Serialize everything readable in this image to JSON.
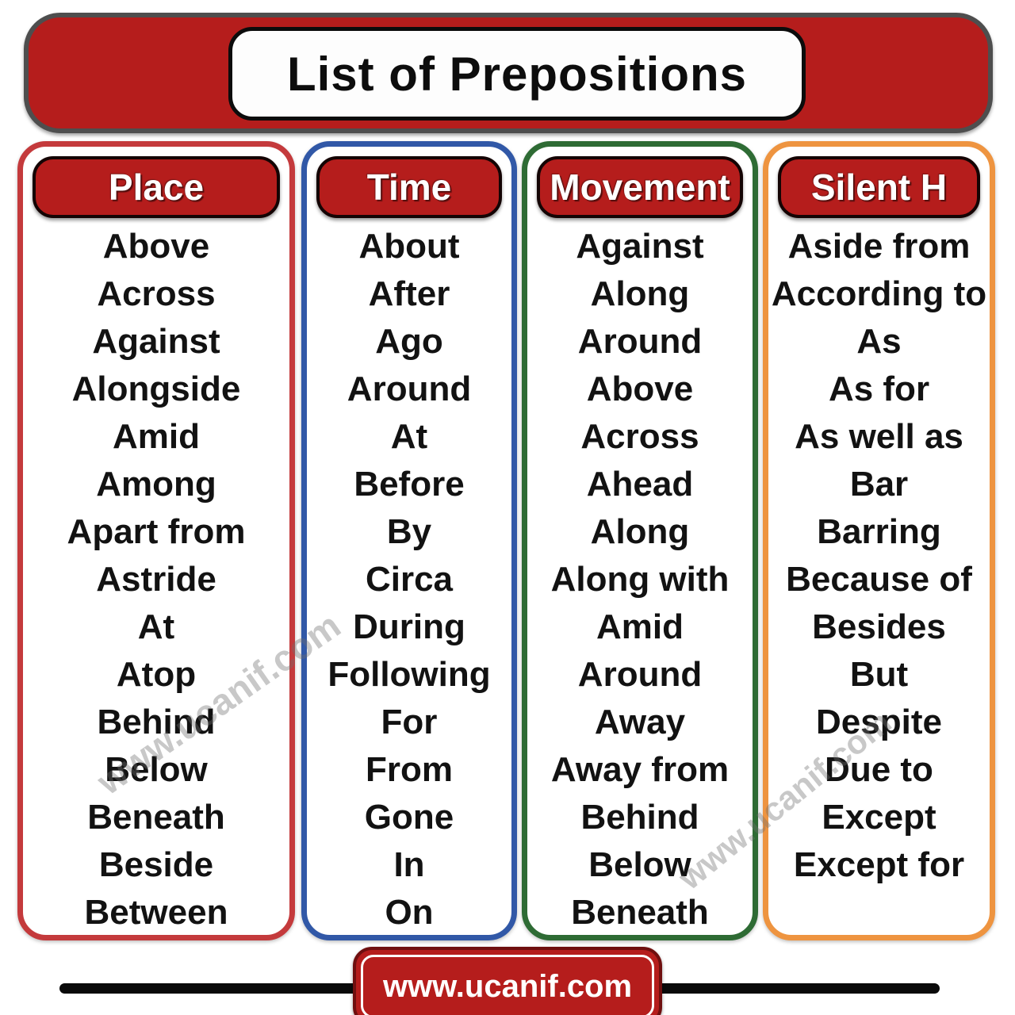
{
  "title": "List of Prepositions",
  "watermark_text": "www.ucanif.com",
  "footer": {
    "site": "www.ucanif.com"
  },
  "colors": {
    "banner_red": "#b51d1c",
    "header_pill_red": "#b51d1c",
    "place_border": "#c43a3c",
    "time_border": "#3158a7",
    "movement_border": "#2e6b34",
    "silent_h_border": "#ee9440",
    "footer_badge_red": "#b51d1c"
  },
  "columns": [
    {
      "label": "Place",
      "border_color": "#c43a3c",
      "items": [
        "Above",
        "Across",
        "Against",
        "Alongside",
        "Amid",
        "Among",
        "Apart from",
        "Astride",
        "At",
        "Atop",
        "Behind",
        "Below",
        "Beneath",
        "Beside",
        "Between"
      ]
    },
    {
      "label": "Time",
      "border_color": "#3158a7",
      "items": [
        "About",
        "After",
        "Ago",
        "Around",
        "At",
        "Before",
        "By",
        "Circa",
        "During",
        "Following",
        "For",
        "From",
        "Gone",
        "In",
        "On"
      ]
    },
    {
      "label": "Movement",
      "border_color": "#2e6b34",
      "items": [
        "Against",
        "Along",
        "Around",
        "Above",
        "Across",
        "Ahead",
        "Along",
        "Along with",
        "Amid",
        "Around",
        "Away",
        "Away from",
        "Behind",
        "Below",
        "Beneath"
      ]
    },
    {
      "label": "Silent H",
      "border_color": "#ee9440",
      "items": [
        "Aside from",
        "According to",
        "As",
        "As for",
        "As well as",
        "Bar",
        "Barring",
        "Because of",
        "Besides",
        "But",
        "Despite",
        "Due to",
        "Except",
        "Except for"
      ]
    }
  ]
}
